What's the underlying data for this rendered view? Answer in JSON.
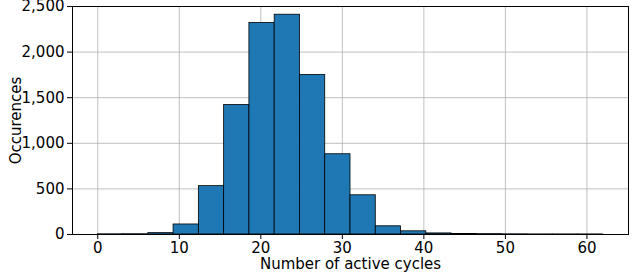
{
  "chart_data": {
    "type": "histogram",
    "xlabel": "Number of active cycles",
    "ylabel": "Occurences",
    "bins": [
      0,
      3.1,
      6.2,
      9.3,
      12.4,
      15.5,
      18.6,
      21.7,
      24.8,
      27.9,
      31,
      34.1,
      37.2,
      40.3,
      43.4,
      46.5,
      49.6,
      52.7,
      55.8,
      58.9,
      62
    ],
    "values": [
      2,
      3,
      15,
      110,
      530,
      1420,
      2320,
      2410,
      1750,
      880,
      430,
      90,
      35,
      12,
      6,
      4,
      2,
      1,
      1,
      1
    ],
    "color": "#1f77b4",
    "xlim": [
      -3.1,
      65.1
    ],
    "ylim": [
      0,
      2500
    ],
    "xticks": [
      0,
      10,
      20,
      30,
      40,
      50,
      60
    ],
    "yticks": [
      0,
      500,
      1000,
      1500,
      2000,
      2500
    ],
    "grid": true
  }
}
